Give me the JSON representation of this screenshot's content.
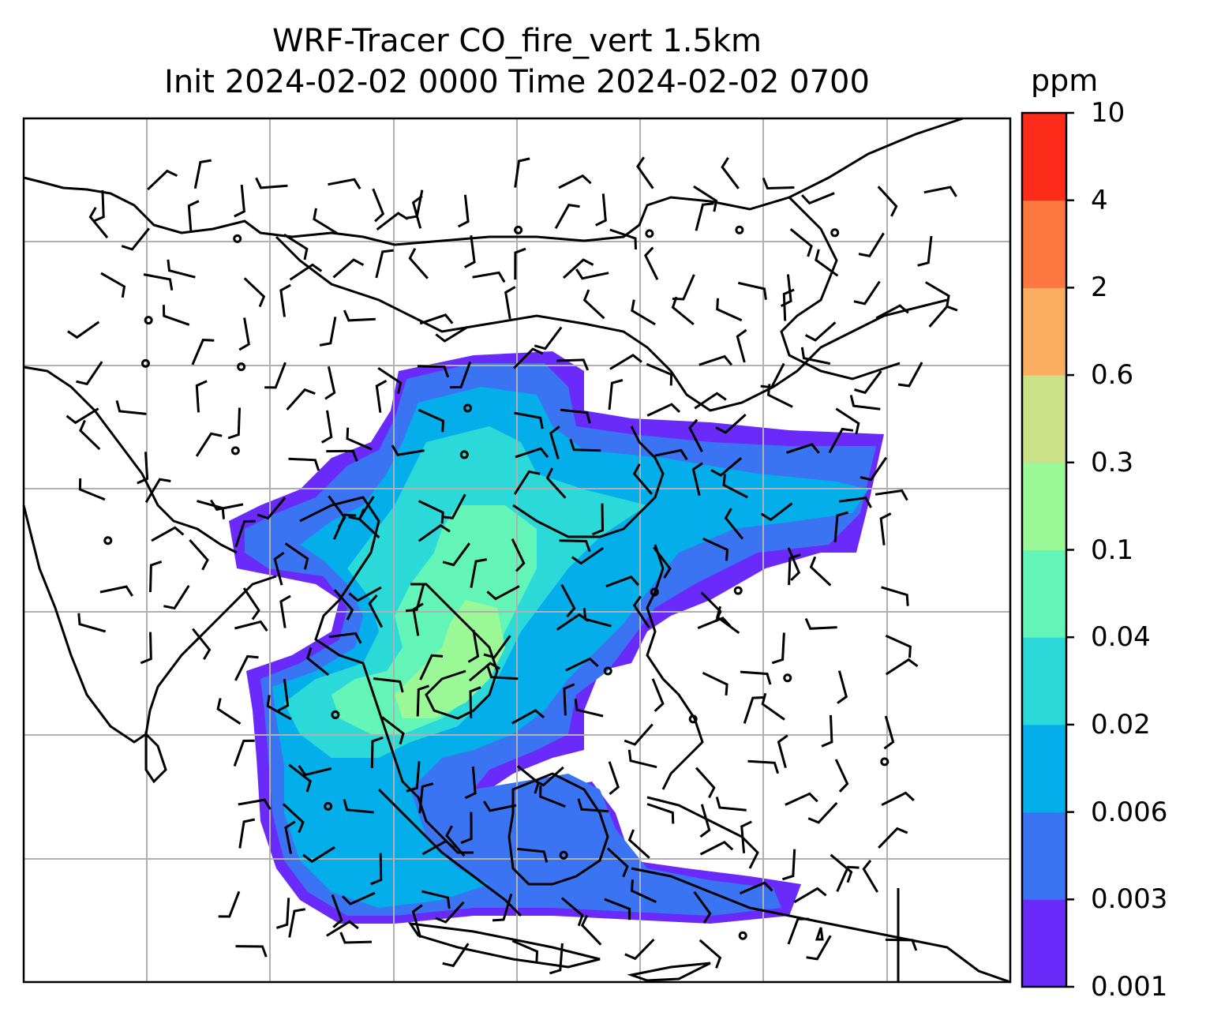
{
  "title_line1": "WRF-Tracer CO_fire_vert 1.5km",
  "title_line2": "Init 2024-02-02 0000 Time 2024-02-02 0700",
  "colorbar": {
    "unit": "ppm",
    "levels": [
      "0.001",
      "0.003",
      "0.006",
      "0.02",
      "0.04",
      "0.1",
      "0.3",
      "0.6",
      "2",
      "4",
      "10"
    ],
    "colors": [
      "#6a2bfa",
      "#3a74f2",
      "#04aeea",
      "#2ad9d8",
      "#63f5b8",
      "#9bf896",
      "#cce088",
      "#fbae60",
      "#fd7840",
      "#fd2b1a"
    ]
  }
}
